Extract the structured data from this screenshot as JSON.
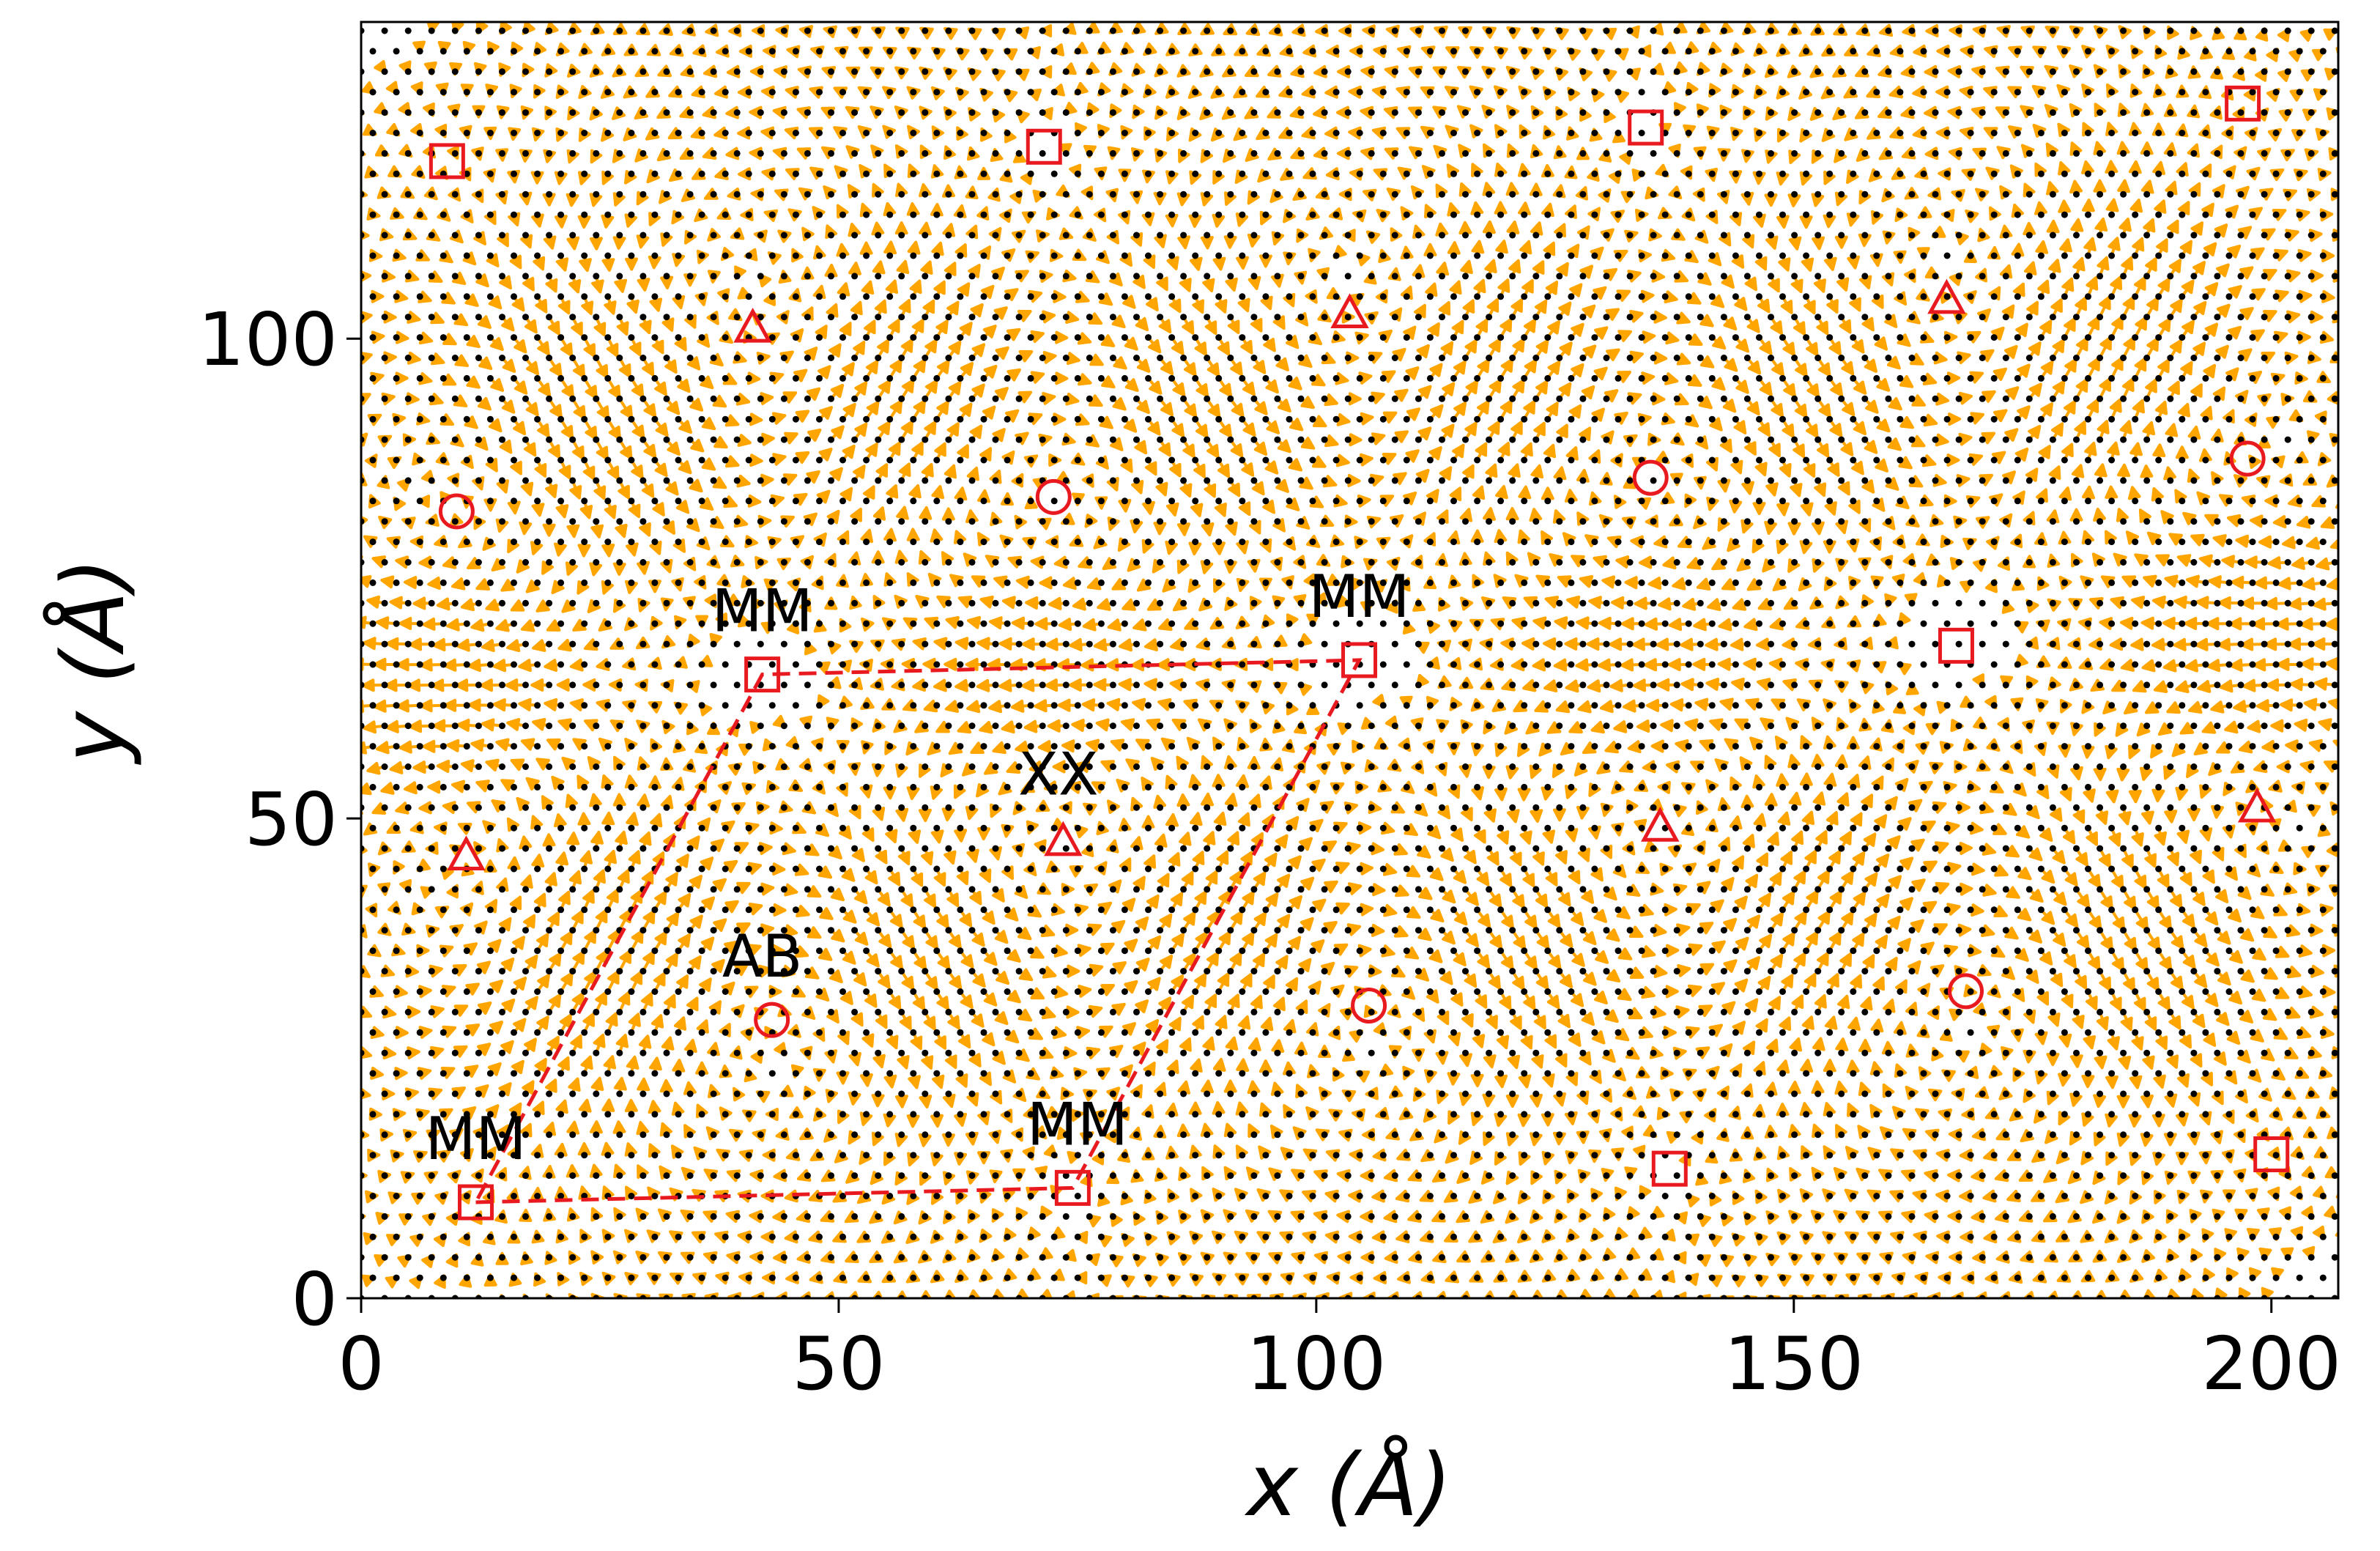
{
  "chart_data": {
    "type": "scatter",
    "title": "",
    "xlabel": "x (Å)",
    "ylabel": "y (Å)",
    "xlim": [
      0,
      207
    ],
    "ylim": [
      0,
      133
    ],
    "xticks": [
      "0",
      "50",
      "100",
      "150",
      "200"
    ],
    "yticks": [
      "0",
      "50",
      "100"
    ],
    "grid": false,
    "legend": "none",
    "colors": {
      "arrows": "#FFA500",
      "atoms": "#000000",
      "markers": "#E8191F",
      "cell": "#E8191F"
    },
    "series": [
      {
        "marker": "square",
        "points": [
          [
            9,
            118.5
          ],
          [
            71.5,
            120
          ],
          [
            134.5,
            122
          ],
          [
            197,
            124.5
          ],
          [
            42,
            65
          ],
          [
            104.5,
            66.5
          ],
          [
            167,
            68
          ],
          [
            12,
            10
          ],
          [
            74.5,
            11.5
          ],
          [
            137,
            13.5
          ],
          [
            200,
            15
          ]
        ]
      },
      {
        "marker": "triangle",
        "points": [
          [
            41,
            101
          ],
          [
            103.5,
            102.5
          ],
          [
            166,
            104
          ],
          [
            11,
            46
          ],
          [
            73.5,
            47.5
          ],
          [
            136,
            49
          ],
          [
            198.5,
            51
          ]
        ]
      },
      {
        "marker": "circle",
        "points": [
          [
            10,
            82
          ],
          [
            72.5,
            83.5
          ],
          [
            135,
            85.5
          ],
          [
            197.5,
            87.5
          ],
          [
            43,
            29
          ],
          [
            105.5,
            30.5
          ],
          [
            168,
            32
          ]
        ]
      }
    ],
    "moire_cell": [
      [
        12,
        10
      ],
      [
        74.5,
        11.5
      ],
      [
        104.5,
        66.5
      ],
      [
        42,
        65
      ]
    ],
    "annotations": [
      {
        "text": "MM",
        "x": 42,
        "y": 69.5
      },
      {
        "text": "MM",
        "x": 104.5,
        "y": 71
      },
      {
        "text": "MM",
        "x": 12,
        "y": 14.5
      },
      {
        "text": "MM",
        "x": 75,
        "y": 16
      },
      {
        "text": "XX",
        "x": 73,
        "y": 52.5
      },
      {
        "text": "AB",
        "x": 42,
        "y": 33.5
      }
    ],
    "field_note_centers": {
      "vortex_ccw": [
        [
          41,
          101
        ],
        [
          103.5,
          102.5
        ],
        [
          166,
          104
        ],
        [
          11,
          46
        ],
        [
          73.5,
          47.5
        ],
        [
          136,
          49
        ],
        [
          198.5,
          51
        ]
      ],
      "vortex_cw": [
        [
          10,
          82
        ],
        [
          72.5,
          83.5
        ],
        [
          135,
          85.5
        ],
        [
          197.5,
          87.5
        ],
        [
          43,
          29
        ],
        [
          105.5,
          30.5
        ],
        [
          168,
          32
        ]
      ]
    }
  }
}
